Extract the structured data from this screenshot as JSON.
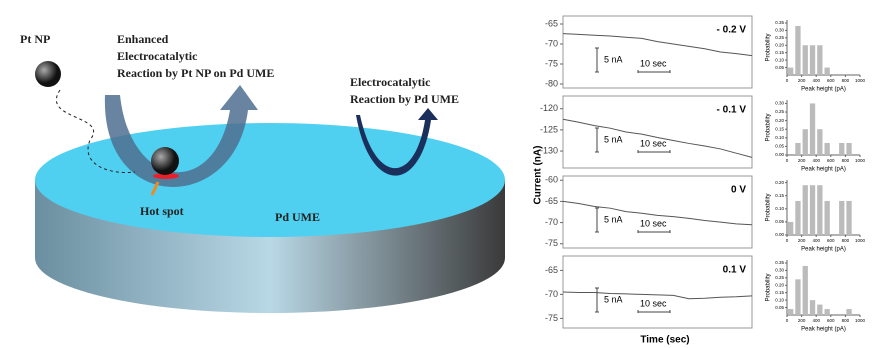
{
  "diagram": {
    "pt_np": "Pt NP",
    "enhanced": [
      "Enhanced",
      "Electrocatalytic",
      "Reaction by Pt NP on Pd UME"
    ],
    "pd_reaction": [
      "Electrocatalytic",
      "Reaction by Pd UME"
    ],
    "hot_spot": "Hot spot",
    "pd_ume": "Pd UME"
  },
  "axis_labels": {
    "y": "Current (nA)",
    "x": "Time (sec)"
  },
  "chart_data": [
    {
      "type": "line",
      "title": "- 0.2 V",
      "scale_labels": [
        "5 nA",
        "10 sec"
      ],
      "x": [
        0,
        5,
        10,
        15,
        20,
        25,
        30,
        35,
        40,
        45,
        50,
        55,
        60
      ],
      "xlim": [
        0,
        60
      ],
      "ylim": [
        -81,
        -63
      ],
      "yticks": [
        -65,
        -70,
        -75,
        -80
      ],
      "color": "#555555",
      "values": [
        -67.4,
        -67.6,
        -67.8,
        -68.0,
        -68.3,
        -68.6,
        -69.4,
        -70.0,
        -70.6,
        -71.2,
        -72.0,
        -72.4,
        -72.9
      ]
    },
    {
      "type": "histogram",
      "xlabel": "Peak height (pA)",
      "ylabel": "Probability",
      "bins": [
        0,
        100,
        200,
        300,
        400,
        500,
        600,
        700,
        800,
        900,
        1000
      ],
      "values": [
        0.05,
        0.33,
        0.2,
        0.2,
        0.2,
        0.05,
        0,
        0,
        0,
        0
      ],
      "color": "#bbbbbb",
      "xlim": [
        0,
        1000
      ],
      "xticks": [
        0,
        200,
        400,
        600,
        800,
        1000
      ],
      "ylim": [
        0,
        0.37
      ],
      "yticks": [
        {
          "value": 0.05,
          "label": "0.05"
        },
        {
          "value": 0.1,
          "label": "0.10"
        },
        {
          "value": 0.15,
          "label": "0.15"
        },
        {
          "value": 0.2,
          "label": "0.20"
        },
        {
          "value": 0.25,
          "label": "0.25"
        },
        {
          "value": 0.3,
          "label": "0.30"
        },
        {
          "value": 0.35,
          "label": "0.35"
        }
      ]
    },
    {
      "type": "line",
      "title": "- 0.1 V",
      "scale_labels": [
        "5 nA",
        "10 sec"
      ],
      "x": [
        0,
        5,
        10,
        15,
        20,
        25,
        30,
        35,
        40,
        45,
        50,
        55,
        60
      ],
      "xlim": [
        0,
        60
      ],
      "ylim": [
        -134,
        -117
      ],
      "yticks": [
        -120,
        -125,
        -130
      ],
      "color": "#555555",
      "values": [
        -122.5,
        -123.2,
        -124.0,
        -124.6,
        -125.5,
        -126.0,
        -126.8,
        -127.5,
        -128.2,
        -128.8,
        -129.5,
        -130.5,
        -131.5
      ]
    },
    {
      "type": "histogram",
      "xlabel": "Peak height (pA)",
      "ylabel": "Probability",
      "bins": [
        0,
        100,
        200,
        300,
        400,
        500,
        600,
        700,
        800,
        900,
        1000
      ],
      "values": [
        0,
        0.07,
        0.15,
        0.3,
        0.15,
        0.07,
        0,
        0.07,
        0.07,
        0
      ],
      "color": "#bbbbbb",
      "xlim": [
        0,
        1000
      ],
      "xticks": [
        0,
        200,
        400,
        600,
        800,
        1000
      ],
      "ylim": [
        0,
        0.32
      ],
      "yticks": [
        {
          "value": 0,
          "label": "0.00"
        },
        {
          "value": 0.05,
          "label": "0.05"
        },
        {
          "value": 0.1,
          "label": "0.10"
        },
        {
          "value": 0.15,
          "label": "0.15"
        },
        {
          "value": 0.2,
          "label": "0.20"
        },
        {
          "value": 0.25,
          "label": "0.25"
        },
        {
          "value": 0.3,
          "label": "0.30"
        }
      ]
    },
    {
      "type": "line",
      "title": "0 V",
      "scale_labels": [
        "5 nA",
        "10 sec"
      ],
      "x": [
        0,
        5,
        10,
        15,
        20,
        25,
        30,
        35,
        40,
        45,
        50,
        55,
        60
      ],
      "xlim": [
        0,
        60
      ],
      "ylim": [
        -76,
        -59
      ],
      "yticks": [
        -60,
        -65,
        -70,
        -75
      ],
      "color": "#555555",
      "values": [
        -65.0,
        -65.5,
        -66.2,
        -66.6,
        -67.4,
        -67.8,
        -68.3,
        -68.6,
        -69.0,
        -69.5,
        -69.9,
        -70.3,
        -70.5
      ]
    },
    {
      "type": "histogram",
      "xlabel": "Peak height (pA)",
      "ylabel": "Probability",
      "bins": [
        0,
        100,
        200,
        300,
        400,
        500,
        600,
        700,
        800,
        900,
        1000
      ],
      "values": [
        0.05,
        0.13,
        0.19,
        0.19,
        0.19,
        0.13,
        0,
        0.13,
        0.13,
        0
      ],
      "color": "#bbbbbb",
      "xlim": [
        0,
        1000
      ],
      "xticks": [
        0,
        200,
        400,
        600,
        800,
        1000
      ],
      "ylim": [
        0,
        0.21
      ],
      "yticks": [
        {
          "value": 0,
          "label": "0.00"
        },
        {
          "value": 0.05,
          "label": "0.05"
        },
        {
          "value": 0.1,
          "label": "0.10"
        },
        {
          "value": 0.15,
          "label": "0.15"
        },
        {
          "value": 0.2,
          "label": "0.20"
        }
      ]
    },
    {
      "type": "line",
      "title": "0.1 V",
      "scale_labels": [
        "5 nA",
        "10 sec"
      ],
      "x": [
        0,
        5,
        10,
        15,
        20,
        25,
        30,
        35,
        40,
        45,
        50,
        55,
        60
      ],
      "xlim": [
        0,
        60
      ],
      "ylim": [
        -77,
        -62
      ],
      "yticks": [
        -65,
        -70,
        -75
      ],
      "color": "#555555",
      "values": [
        -69.5,
        -69.6,
        -69.6,
        -69.8,
        -69.9,
        -70.0,
        -70.1,
        -70.2,
        -70.9,
        -70.8,
        -70.6,
        -70.5,
        -70.3
      ]
    },
    {
      "type": "histogram",
      "xlabel": "Peak height (pA)",
      "ylabel": "Probability",
      "bins": [
        0,
        100,
        200,
        300,
        400,
        500,
        600,
        700,
        800,
        900,
        1000
      ],
      "values": [
        0.04,
        0.24,
        0.33,
        0.1,
        0.07,
        0.04,
        0,
        0,
        0.04,
        0
      ],
      "color": "#bbbbbb",
      "xlim": [
        0,
        1000
      ],
      "xticks": [
        0,
        200,
        400,
        600,
        800,
        1000
      ],
      "ylim": [
        0,
        0.37
      ],
      "yticks": [
        {
          "value": 0.05,
          "label": "0.05"
        },
        {
          "value": 0.1,
          "label": "0.10"
        },
        {
          "value": 0.15,
          "label": "0.15"
        },
        {
          "value": 0.2,
          "label": "0.20"
        },
        {
          "value": 0.25,
          "label": "0.25"
        },
        {
          "value": 0.3,
          "label": "0.30"
        },
        {
          "value": 0.35,
          "label": "0.35"
        }
      ]
    }
  ]
}
